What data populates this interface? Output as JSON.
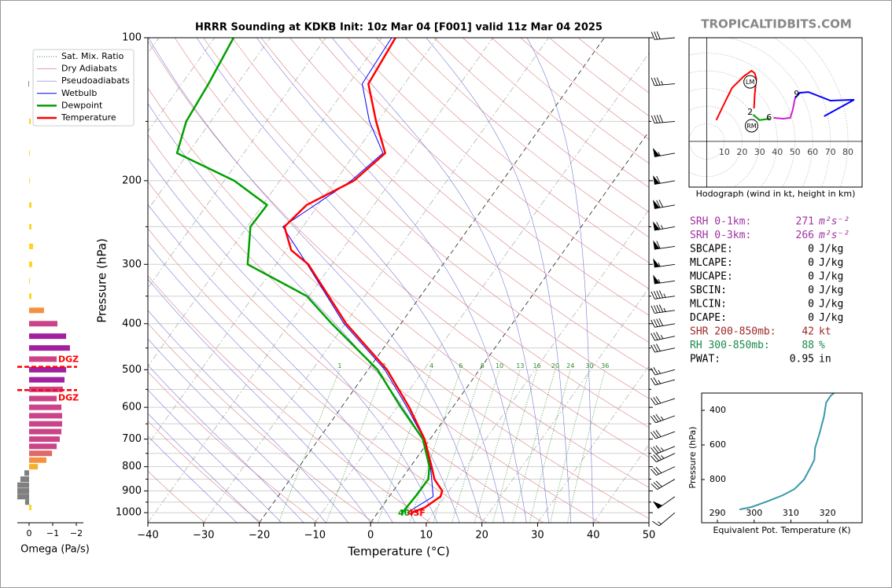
{
  "watermark": "TROPICALTIDBITS.COM",
  "chart_data": [
    {
      "type": "skewt",
      "title": "HRRR Sounding at KDKB Init: 10z Mar 04 [F001] valid 11z Mar 04 2025",
      "x_label": "Temperature (°C)",
      "y_label": "Pressure (hPa)",
      "log_y": true,
      "xlim": [
        -40,
        50
      ],
      "ylim": [
        1050,
        100
      ],
      "xticks": [
        {
          "value": -40,
          "label": "−40"
        },
        {
          "value": -30,
          "label": "−30"
        },
        {
          "value": -20,
          "label": "−20"
        },
        {
          "value": -10,
          "label": "−10"
        },
        0,
        10,
        20,
        30,
        40,
        50
      ],
      "yticks": [
        100,
        200,
        300,
        400,
        500,
        600,
        700,
        800,
        900,
        1000
      ],
      "minor_yticks": [
        150,
        250,
        350,
        450,
        550,
        650,
        750,
        850,
        950
      ],
      "grid": true,
      "legend_position": "upper left",
      "mixing_ratio_labels": [
        1,
        2,
        4,
        6,
        8,
        10,
        13,
        16,
        20,
        24,
        30,
        36
      ],
      "background": [
        {
          "name": "Sat. Mix. Ratio",
          "color": "#2e8b2e"
        },
        {
          "name": "Dry Adiabats",
          "color": "#d98080"
        },
        {
          "name": "Pseudoadiabats",
          "color": "#7a7ad6"
        }
      ],
      "series": [
        {
          "name": "Wetbulb",
          "color": "#0000ff",
          "width": 1,
          "y": [
            1000,
            925,
            850,
            800,
            700,
            600,
            500,
            400,
            300,
            250,
            200,
            175,
            150,
            125,
            100
          ],
          "values": [
            5.3,
            7.9,
            5.4,
            3.6,
            -1.1,
            -8.2,
            -17,
            -30.2,
            -44.4,
            -53.6,
            -47.2,
            -45,
            -51.5,
            -57.6,
            -58.2
          ]
        },
        {
          "name": "Dewpoint",
          "color": "#00a000",
          "width": 2.5,
          "y": [
            1000,
            925,
            850,
            800,
            700,
            600,
            500,
            400,
            350,
            300,
            250,
            225,
            200,
            175,
            150,
            125,
            100
          ],
          "values": [
            4.4,
            4.7,
            4.8,
            3.4,
            -1.3,
            -9.3,
            -18.3,
            -32.4,
            -40.4,
            -55.1,
            -59.4,
            -59.2,
            -68.2,
            -82,
            -84.4,
            -85.2,
            -86.6
          ]
        },
        {
          "name": "Temperature",
          "color": "#ff0000",
          "width": 2.5,
          "y": [
            1000,
            975,
            925,
            900,
            850,
            800,
            700,
            600,
            500,
            400,
            300,
            280,
            250,
            225,
            200,
            175,
            150,
            125,
            100
          ],
          "values": [
            6.1,
            7.8,
            9.2,
            8.8,
            5.9,
            3.8,
            -1,
            -7.8,
            -16.6,
            -29.8,
            -44.2,
            -49.1,
            -53.3,
            -52.1,
            -46.7,
            -44.6,
            -50.3,
            -56.5,
            -57.5
          ]
        }
      ],
      "annotations": [
        {
          "text": "40",
          "color": "#00a000"
        },
        {
          "text": "43F",
          "color": "#ff0000"
        }
      ],
      "winds": {
        "y": [
          100,
          125,
          150,
          175,
          200,
          225,
          250,
          275,
          300,
          325,
          350,
          375,
          400,
          425,
          450,
          500,
          525,
          575,
          625,
          675,
          725,
          750,
          800,
          850,
          925,
          1000
        ],
        "values": [
          30,
          35,
          40,
          55,
          60,
          70,
          65,
          60,
          55,
          55,
          45,
          45,
          40,
          35,
          30,
          25,
          25,
          30,
          35,
          30,
          35,
          35,
          30,
          30,
          50,
          15
        ],
        "direction": [
          265,
          265,
          265,
          260,
          260,
          260,
          260,
          262,
          262,
          262,
          262,
          262,
          260,
          258,
          258,
          255,
          255,
          252,
          250,
          250,
          248,
          245,
          245,
          240,
          235,
          230
        ]
      }
    },
    {
      "type": "bar",
      "orientation": "horizontal",
      "x_label": "Omega (Pa/s)",
      "xlim": [
        0.5,
        -2.3
      ],
      "xticks": [
        0,
        {
          "value": -1,
          "label": "−1"
        },
        {
          "value": -2,
          "label": "−2"
        }
      ],
      "y": [
        125,
        150,
        175,
        200,
        225,
        250,
        275,
        300,
        325,
        350,
        375,
        400,
        425,
        450,
        475,
        500,
        525,
        550,
        575,
        600,
        625,
        650,
        675,
        700,
        725,
        750,
        775,
        800,
        825,
        850,
        875,
        900,
        925,
        950,
        975
      ],
      "values": [
        0.03,
        -0.07,
        -0.03,
        -0.03,
        -0.1,
        -0.1,
        -0.17,
        -0.13,
        -0.03,
        -0.1,
        -0.63,
        -1.2,
        -1.57,
        -1.73,
        -1.17,
        -1.57,
        -1.5,
        -1.43,
        -1.17,
        -1.37,
        -1.4,
        -1.4,
        -1.37,
        -1.3,
        -1.17,
        -0.97,
        -0.73,
        -0.37,
        0.2,
        0.37,
        0.5,
        0.5,
        0.5,
        0.17,
        -0.1
      ],
      "dgz": [
        {
          "y": 493,
          "label": "DGZ"
        },
        {
          "y": 552,
          "label": "DGZ"
        }
      ],
      "dgz_color": "#ff0000"
    },
    {
      "type": "hodograph",
      "caption": "Hodograph (wind in kt, height in km)",
      "xlim": [
        -10,
        88
      ],
      "ylim": [
        -26,
        59
      ],
      "xticks": [
        10,
        20,
        30,
        40,
        50,
        60,
        70,
        80
      ],
      "series": [
        {
          "color": "#ff0000",
          "x": [
            5.4,
            10.3,
            14.3,
            21,
            25.4,
            27.2,
            28.1,
            27.2,
            26.8
          ],
          "values": [
            12.1,
            22.3,
            30.4,
            37.1,
            40.2,
            38.8,
            35.7,
            26.8,
            18.8
          ]
        },
        {
          "color": "#00a000",
          "x": [
            26.3,
            29.9,
            35.7
          ],
          "values": [
            15.2,
            12.1,
            12.9
          ]
        },
        {
          "color": "#d020d0",
          "x": [
            37.9,
            43.3,
            47.3,
            48.7,
            50
          ],
          "values": [
            13.4,
            12.9,
            13.4,
            17.9,
            24.6
          ]
        },
        {
          "color": "#0000ff",
          "x": [
            50,
            52.7,
            57.6,
            70.1,
            83.5,
            66.5
          ],
          "values": [
            24.6,
            27.7,
            28.1,
            23.2,
            23.7,
            14.3
          ]
        }
      ],
      "annotations": [
        {
          "text": "2",
          "x": 24.6,
          "y": 16.5
        },
        {
          "text": "6",
          "x": 35.3,
          "y": 13.4
        },
        {
          "text": "9",
          "x": 50.9,
          "y": 26.8
        }
      ],
      "motions": [
        {
          "text": "LM",
          "x": 24.6,
          "y": 33.9
        },
        {
          "text": "RM",
          "x": 25.4,
          "y": 8.9
        }
      ]
    },
    {
      "type": "line",
      "x_label": "Equivalent Pot. Temperature (K)",
      "y_label": "Pressure (hPa)",
      "color": "#3a98aa",
      "xlim": [
        285.7,
        329.4
      ],
      "ylim": [
        1050,
        300
      ],
      "xticks": [
        290,
        300,
        310,
        320
      ],
      "yticks": [
        400,
        600,
        800
      ],
      "y": [
        973,
        959,
        927,
        891,
        855,
        800,
        732,
        686,
        618,
        527,
        436,
        355,
        314,
        300
      ],
      "values": [
        296,
        299.3,
        303.5,
        307.8,
        311,
        313.6,
        315.3,
        316.4,
        316.6,
        317.9,
        319,
        319.6,
        320.9,
        321.8
      ]
    }
  ],
  "indices": [
    {
      "label": "SRH 0-1km:",
      "value": 271,
      "unit": "m²s⁻²",
      "color": "#a030a0"
    },
    {
      "label": "SRH 0-3km:",
      "value": 266,
      "unit": "m²s⁻²",
      "color": "#a030a0"
    },
    {
      "label": "SBCAPE:",
      "value": 0,
      "unit": "J/kg",
      "color": "#000000"
    },
    {
      "label": "MLCAPE:",
      "value": 0,
      "unit": "J/kg",
      "color": "#000000"
    },
    {
      "label": "MUCAPE:",
      "value": 0,
      "unit": "J/kg",
      "color": "#000000"
    },
    {
      "label": "SBCIN:",
      "value": 0,
      "unit": "J/kg",
      "color": "#000000"
    },
    {
      "label": "MLCIN:",
      "value": 0,
      "unit": "J/kg",
      "color": "#000000"
    },
    {
      "label": "DCAPE:",
      "value": 0,
      "unit": "J/kg",
      "color": "#000000"
    },
    {
      "label": "SHR 200-850mb:",
      "value": 42,
      "unit": "kt",
      "color": "#a02828"
    },
    {
      "label": "RH 300-850mb:",
      "value": 88,
      "unit": "%",
      "color": "#1a8a4a"
    },
    {
      "label": "PWAT:",
      "value": 0.95,
      "unit": "in",
      "color": "#000000"
    }
  ]
}
